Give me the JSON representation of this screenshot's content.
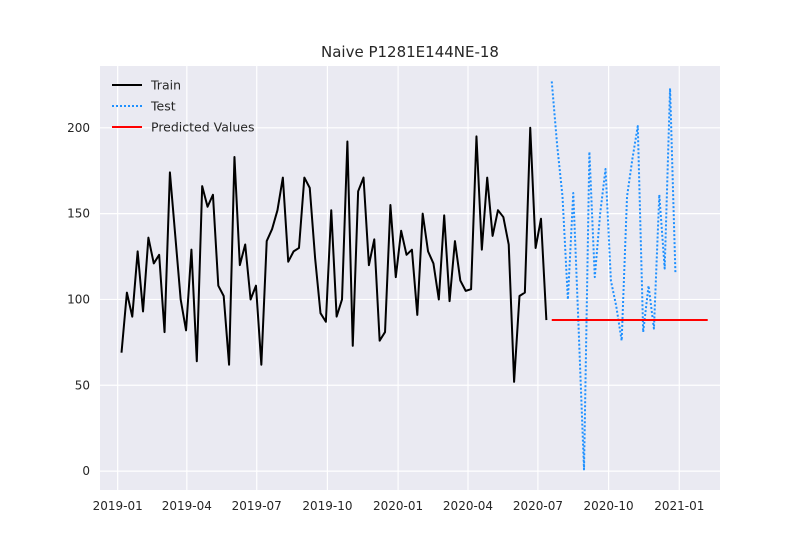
{
  "colors": {
    "plot_background": "#eaeaf2",
    "grid": "#ffffff",
    "train": "#000000",
    "test": "#1e90ff",
    "predicted": "#ff0000",
    "text": "#262626"
  },
  "chart_data": {
    "type": "line",
    "title": "Naive P1281E144NE-18",
    "xlabel": "",
    "ylabel": "",
    "x_axis_type": "date",
    "xlim": [
      "2018-12-09",
      "2021-02-23"
    ],
    "ylim": [
      -11,
      236
    ],
    "x_ticks": [
      "2019-01",
      "2019-04",
      "2019-07",
      "2019-10",
      "2020-01",
      "2020-04",
      "2020-07",
      "2020-10",
      "2021-01"
    ],
    "x_tick_dates": [
      "2019-01-01",
      "2019-04-01",
      "2019-07-01",
      "2019-10-01",
      "2020-01-01",
      "2020-04-01",
      "2020-07-01",
      "2020-10-01",
      "2021-01-01"
    ],
    "y_ticks": [
      0,
      50,
      100,
      150,
      200
    ],
    "grid": true,
    "legend": {
      "position": "top-left",
      "entries": [
        "Train",
        "Test",
        "Predicted Values"
      ]
    },
    "series": [
      {
        "name": "Train",
        "style": "solid",
        "x": [
          "2019-01-06",
          "2019-01-13",
          "2019-01-20",
          "2019-01-27",
          "2019-02-03",
          "2019-02-10",
          "2019-02-17",
          "2019-02-24",
          "2019-03-03",
          "2019-03-10",
          "2019-03-17",
          "2019-03-24",
          "2019-03-31",
          "2019-04-07",
          "2019-04-14",
          "2019-04-21",
          "2019-04-28",
          "2019-05-05",
          "2019-05-12",
          "2019-05-19",
          "2019-05-26",
          "2019-06-02",
          "2019-06-09",
          "2019-06-16",
          "2019-06-23",
          "2019-06-30",
          "2019-07-07",
          "2019-07-14",
          "2019-07-21",
          "2019-07-28",
          "2019-08-04",
          "2019-08-11",
          "2019-08-18",
          "2019-08-25",
          "2019-09-01",
          "2019-09-08",
          "2019-09-15",
          "2019-09-22",
          "2019-09-29",
          "2019-10-06",
          "2019-10-13",
          "2019-10-20",
          "2019-10-27",
          "2019-11-03",
          "2019-11-10",
          "2019-11-17",
          "2019-11-24",
          "2019-12-01",
          "2019-12-08",
          "2019-12-15",
          "2019-12-22",
          "2019-12-29",
          "2020-01-05",
          "2020-01-12",
          "2020-01-19",
          "2020-01-26",
          "2020-02-02",
          "2020-02-09",
          "2020-02-16",
          "2020-02-23",
          "2020-03-01",
          "2020-03-08",
          "2020-03-15",
          "2020-03-22",
          "2020-03-29",
          "2020-04-05",
          "2020-04-12",
          "2020-04-19",
          "2020-04-26",
          "2020-05-03",
          "2020-05-10",
          "2020-05-17",
          "2020-05-24",
          "2020-05-31",
          "2020-06-07",
          "2020-06-14",
          "2020-06-21",
          "2020-06-28",
          "2020-07-05",
          "2020-07-12"
        ],
        "values": [
          69,
          104,
          90,
          128,
          93,
          136,
          121,
          126,
          81,
          174,
          137,
          100,
          82,
          129,
          64,
          166,
          154,
          161,
          108,
          102,
          62,
          183,
          120,
          132,
          100,
          108,
          62,
          134,
          141,
          152,
          171,
          122,
          128,
          130,
          171,
          165,
          124,
          92,
          87,
          152,
          90,
          100,
          192,
          73,
          163,
          171,
          120,
          135,
          76,
          81,
          155,
          113,
          140,
          126,
          129,
          91,
          150,
          128,
          121,
          100,
          149,
          99,
          134,
          111,
          105,
          106,
          195,
          129,
          171,
          137,
          152,
          148,
          132,
          52,
          102,
          104,
          200,
          130,
          147,
          88
        ]
      },
      {
        "name": "Test",
        "style": "dotted",
        "x": [
          "2020-07-19",
          "2020-07-26",
          "2020-08-02",
          "2020-08-09",
          "2020-08-16",
          "2020-08-23",
          "2020-08-30",
          "2020-09-06",
          "2020-09-13",
          "2020-09-20",
          "2020-09-27",
          "2020-10-04",
          "2020-10-11",
          "2020-10-18",
          "2020-10-25",
          "2020-11-01",
          "2020-11-08",
          "2020-11-15",
          "2020-11-22",
          "2020-11-29",
          "2020-12-06",
          "2020-12-13",
          "2020-12-20",
          "2020-12-27"
        ],
        "values": [
          227,
          190,
          160,
          100,
          162,
          83,
          1,
          186,
          113,
          150,
          176,
          111,
          96,
          76,
          160,
          182,
          201,
          81,
          108,
          83,
          161,
          118,
          223,
          115
        ]
      },
      {
        "name": "Predicted Values",
        "style": "solid",
        "x": [
          "2020-07-19",
          "2021-02-07"
        ],
        "values": [
          88,
          88
        ]
      }
    ]
  }
}
